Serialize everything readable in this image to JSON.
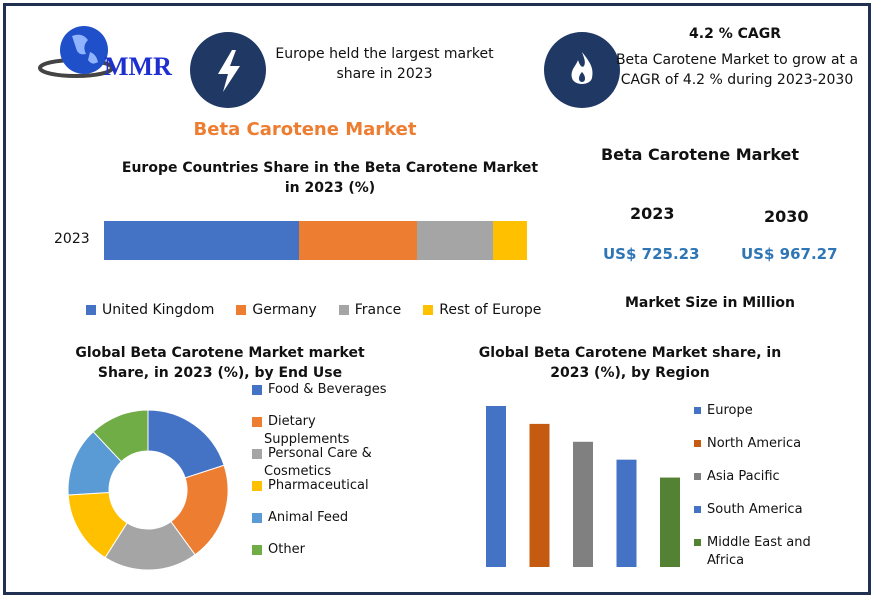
{
  "logo": {
    "text": "MMR"
  },
  "highlight1": {
    "icon": "lightning-icon",
    "text": "Europe held the largest market share in 2023"
  },
  "highlight2": {
    "icon": "flame-icon",
    "title": "4.2 % CAGR",
    "text": "Beta Carotene Market to grow at a CAGR of 4.2 % during 2023-2030"
  },
  "main_title": "Beta Carotene Market",
  "market_size": {
    "title": "Beta Carotene Market",
    "year1": "2023",
    "value1": "US$ 725.23",
    "year2": "2030",
    "value2": "US$ 967.27",
    "caption": "Market Size in Million"
  },
  "colors": {
    "accent_orange": "#ED7D31",
    "navy": "#203864",
    "value_blue": "#2E75B6"
  },
  "chart_data": [
    {
      "type": "bar",
      "stacked": true,
      "orientation": "horizontal",
      "title": "Europe Countries Share in the  Beta Carotene Market in 2023 (%)",
      "categories": [
        "2023"
      ],
      "series": [
        {
          "name": "United Kingdom",
          "values": [
            46
          ],
          "color": "#4472C4"
        },
        {
          "name": "Germany",
          "values": [
            28
          ],
          "color": "#ED7D31"
        },
        {
          "name": "France",
          "values": [
            18
          ],
          "color": "#A5A5A5"
        },
        {
          "name": "Rest of Europe",
          "values": [
            8
          ],
          "color": "#FFC000"
        }
      ],
      "legend": "bottom"
    },
    {
      "type": "pie",
      "donut": true,
      "title": "Global Beta Carotene Market market Share, in 2023 (%), by End Use",
      "labels": [
        "Food & Beverages",
        "Dietary Supplements",
        "Personal Care & Cosmetics",
        "Pharmaceutical",
        "Animal Feed",
        "Other"
      ],
      "legend_lines": [
        [
          "Food & Beverages"
        ],
        [
          "Dietary",
          "Supplements"
        ],
        [
          "Personal Care &",
          "Cosmetics"
        ],
        [
          "Pharmaceutical"
        ],
        [
          "Animal Feed"
        ],
        [
          "Other"
        ]
      ],
      "values": [
        20,
        20,
        19,
        15,
        14,
        12
      ],
      "colors": [
        "#4472C4",
        "#ED7D31",
        "#A5A5A5",
        "#FFC000",
        "#5B9BD5",
        "#70AD47"
      ],
      "legend": "right"
    },
    {
      "type": "bar",
      "title": "Global Beta Carotene Market share, in 2023 (%), by Region",
      "categories": [
        "Europe",
        "North America",
        "Asia Pacific",
        "South America",
        "Middle East and Africa"
      ],
      "legend_lines": [
        [
          "Europe"
        ],
        [
          "North America"
        ],
        [
          "Asia Pacific"
        ],
        [
          "South America"
        ],
        [
          "Middle East and",
          "Africa"
        ]
      ],
      "values": [
        36,
        32,
        28,
        24,
        20
      ],
      "colors": [
        "#4472C4",
        "#C55A11",
        "#808080",
        "#4472C4",
        "#548235"
      ],
      "ylim": [
        0,
        36
      ],
      "legend": "right"
    }
  ]
}
